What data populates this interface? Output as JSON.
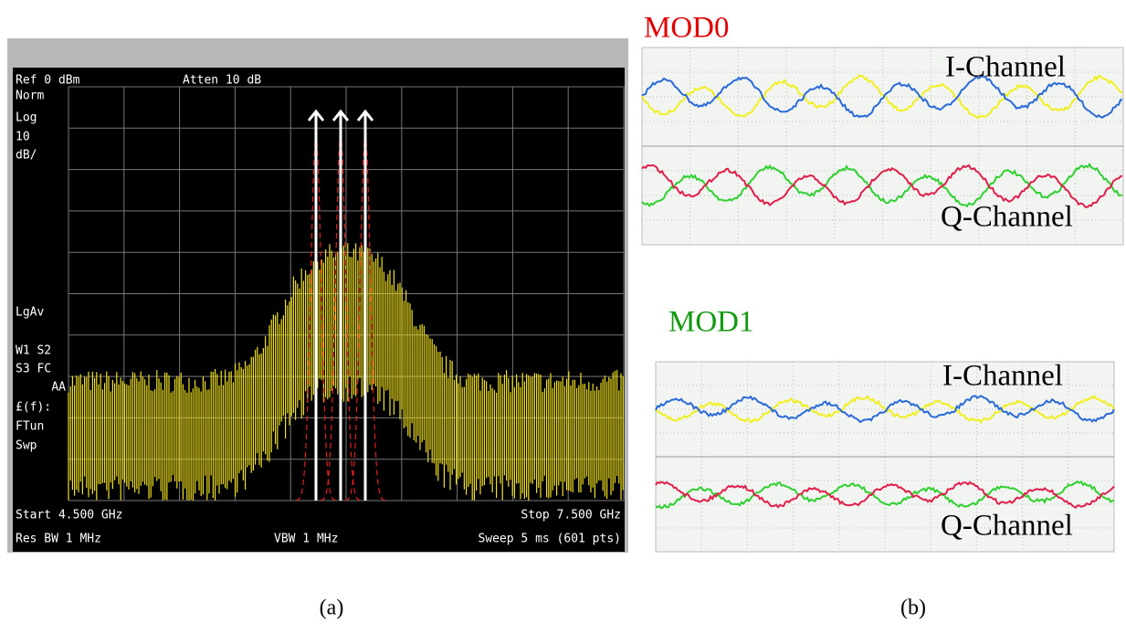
{
  "spectrum": {
    "ref": "Ref 0 dBm",
    "atten": "Atten 10 dB",
    "side": [
      "Norm",
      "Log",
      "10",
      "dB/",
      "LgAv",
      "W1  S2",
      "S3  FC",
      "AA",
      "£(f):",
      "FTun",
      "Swp"
    ],
    "start": "Start 4.500 GHz",
    "stop": "Stop 7.500 GHz",
    "res_bw": "Res BW 1 MHz",
    "vbw": "VBW 1 MHz",
    "sweep": "Sweep 5 ms (601 pts)"
  },
  "scopes": [
    {
      "title": "MOD0",
      "i_label": "I-Channel",
      "q_label": "Q-Channel"
    },
    {
      "title": "MOD1",
      "i_label": "I-Channel",
      "q_label": "Q-Channel"
    }
  ],
  "captions": {
    "a": "(a)",
    "b": "(b)"
  }
}
